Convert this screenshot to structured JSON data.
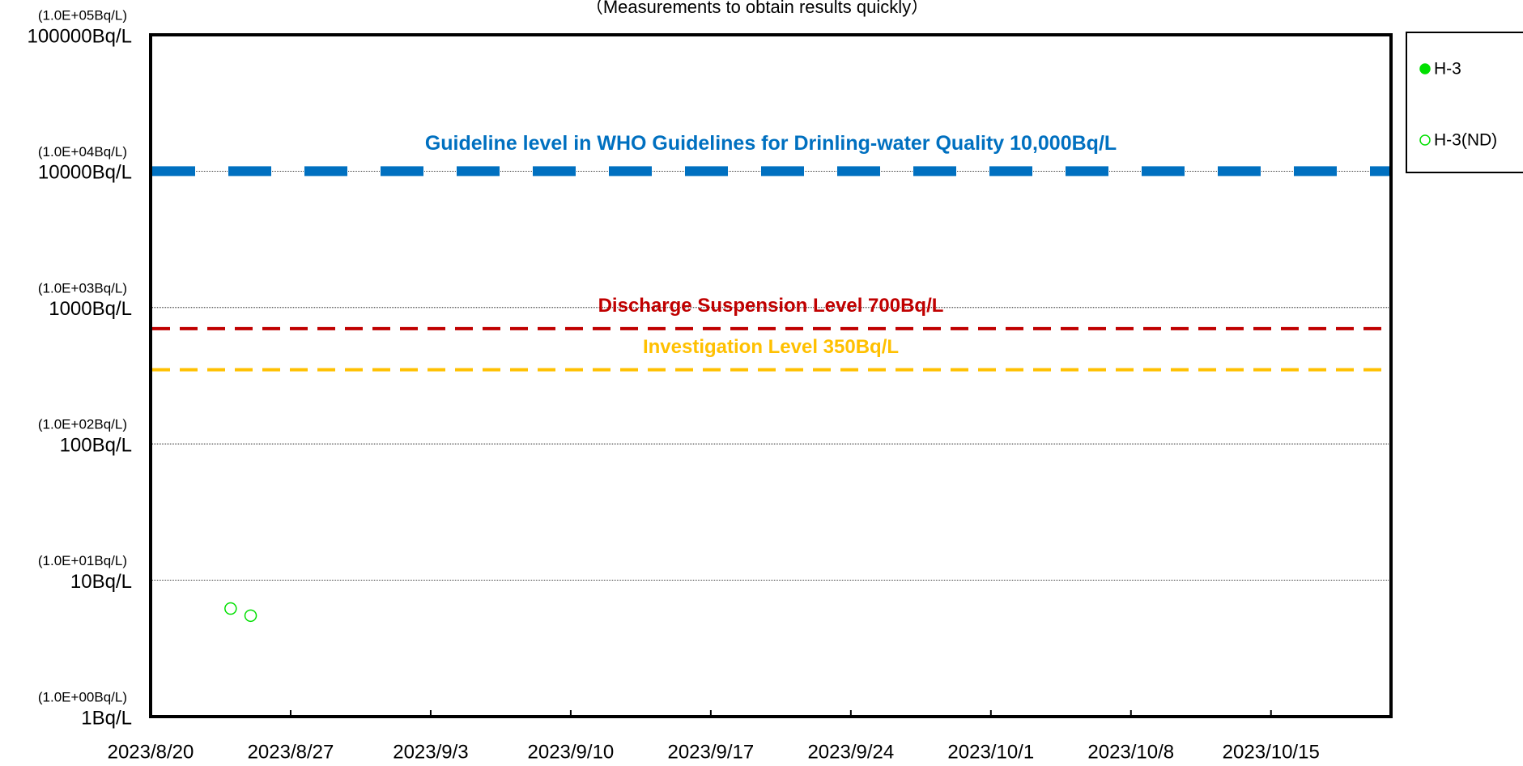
{
  "chart_data": {
    "type": "scatter",
    "title": "（Measurements to obtain results quickly）",
    "log_y": true,
    "grid": true,
    "xlim": [
      "2023/8/20",
      "2023/10/21"
    ],
    "xticks": [
      "2023/8/20",
      "2023/8/27",
      "2023/9/3",
      "2023/9/10",
      "2023/9/17",
      "2023/9/24",
      "2023/10/1",
      "2023/10/8",
      "2023/10/15"
    ],
    "ylim": [
      1,
      100000
    ],
    "yticks": [
      {
        "value": 1,
        "label": "1Bq/L"
      },
      {
        "value": 10,
        "label": "10Bq/L"
      },
      {
        "value": 100,
        "label": "100Bq/L"
      },
      {
        "value": 1000,
        "label": "1000Bq/L"
      },
      {
        "value": 10000,
        "label": "10000Bq/L"
      },
      {
        "value": 100000,
        "label": "100000Bq/L"
      }
    ],
    "ytick_notes": [
      "(1.0E+00Bq/L)",
      "(1.0E+01Bq/L)",
      "(1.0E+02Bq/L)",
      "(1.0E+03Bq/L)",
      "(1.0E+04Bq/L)",
      "(1.0E+05Bq/L)"
    ],
    "reference_lines": [
      {
        "value": 10000,
        "label": "Guideline level in WHO Guidelines for Drinling-water Quality 10,000Bq/L",
        "color": "#0070c0"
      },
      {
        "value": 700,
        "label": "Discharge Suspension Level 700Bq/L",
        "color": "#c00000"
      },
      {
        "value": 350,
        "label": "Investigation Level 350Bq/L",
        "color": "#ffc000"
      }
    ],
    "series": [
      {
        "name": "H-3",
        "color": "#00e000",
        "marker": "filled",
        "x": [],
        "values": []
      },
      {
        "name": "H-3(ND)",
        "color": "#00e000",
        "marker": "open",
        "x": [
          "2023/8/24",
          "2023/8/25"
        ],
        "values": [
          6.2,
          5.5
        ]
      }
    ]
  }
}
